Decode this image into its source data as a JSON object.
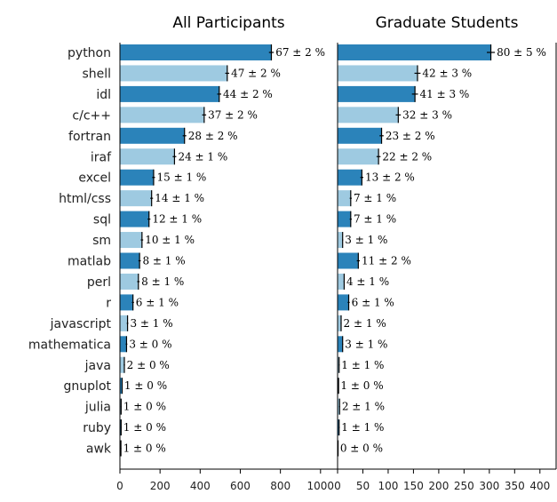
{
  "chart_data": [
    {
      "type": "bar",
      "orientation": "horizontal",
      "title": "All Participants",
      "categories": [
        "python",
        "shell",
        "idl",
        "c/c++",
        "fortran",
        "iraf",
        "excel",
        "html/css",
        "sql",
        "sm",
        "matlab",
        "perl",
        "r",
        "javascript",
        "mathematica",
        "java",
        "gnuplot",
        "julia",
        "ruby",
        "awk"
      ],
      "values": [
        755,
        535,
        495,
        420,
        322,
        272,
        168,
        158,
        145,
        110,
        98,
        92,
        65,
        38,
        33,
        22,
        11,
        6,
        6,
        5
      ],
      "errors": [
        12,
        10,
        10,
        10,
        9,
        9,
        7,
        7,
        7,
        6,
        6,
        6,
        5,
        4,
        4,
        3,
        2,
        2,
        2,
        2
      ],
      "labels": [
        "67 ± 2 %",
        "47 ± 2 %",
        "44 ± 2 %",
        "37 ± 2 %",
        "28 ± 2 %",
        "24 ± 1 %",
        "15 ± 1 %",
        "14 ± 1 %",
        "12 ± 1 %",
        "10 ± 1 %",
        "8 ± 1 %",
        "8 ± 1 %",
        "6 ± 1 %",
        "3 ± 1 %",
        "3 ± 0 %",
        "2 ± 0 %",
        "1 ± 0 %",
        "1 ± 0 %",
        "1 ± 0 %",
        "1 ± 0 %"
      ],
      "xlim": [
        0,
        1085
      ],
      "xticks": [
        0,
        200,
        400,
        600,
        800,
        1000
      ],
      "xtick_labels": [
        "0",
        "200",
        "400",
        "600",
        "800",
        "1000"
      ],
      "colors": [
        "#2b83ba",
        "#9ecae1"
      ]
    },
    {
      "type": "bar",
      "orientation": "horizontal",
      "title": "Graduate Students",
      "categories": [
        "python",
        "shell",
        "idl",
        "c/c++",
        "fortran",
        "iraf",
        "excel",
        "html/css",
        "sql",
        "sm",
        "matlab",
        "perl",
        "r",
        "javascript",
        "mathematica",
        "java",
        "gnuplot",
        "julia",
        "ruby",
        "awk"
      ],
      "values": [
        303,
        158,
        153,
        120,
        87,
        81,
        48,
        26,
        26,
        10,
        41,
        13,
        22,
        7,
        10,
        3,
        2,
        4,
        3,
        1
      ],
      "errors": [
        8,
        6,
        6,
        5,
        4,
        4,
        3,
        2,
        2,
        1,
        3,
        1,
        2,
        1,
        1,
        1,
        0.5,
        1,
        1,
        0.5
      ],
      "labels": [
        "80 ± 5 %",
        "42 ± 3 %",
        "41 ± 3 %",
        "32 ± 3 %",
        "23 ± 2 %",
        "22 ± 2 %",
        "13 ± 2 %",
        "7 ± 1 %",
        "7 ± 1 %",
        "3 ± 1 %",
        "11 ± 2 %",
        "4 ± 1 %",
        "6 ± 1 %",
        "2 ± 1 %",
        "3 ± 1 %",
        "1 ± 1 %",
        "1 ± 0 %",
        "2 ± 1 %",
        "1 ± 1 %",
        "0 ± 0 %"
      ],
      "xlim": [
        0,
        432
      ],
      "xticks": [
        0,
        50,
        100,
        150,
        200,
        250,
        300,
        350,
        400
      ],
      "xtick_labels": [
        "0",
        "50",
        "100",
        "150",
        "200",
        "250",
        "300",
        "350",
        "400"
      ],
      "colors": [
        "#2b83ba",
        "#9ecae1"
      ]
    }
  ]
}
